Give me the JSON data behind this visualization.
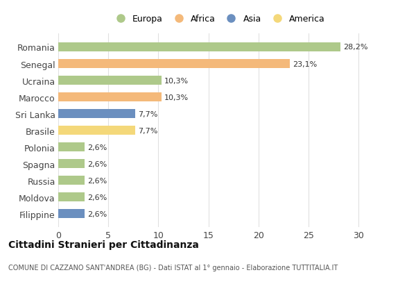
{
  "countries": [
    "Romania",
    "Senegal",
    "Ucraina",
    "Marocco",
    "Sri Lanka",
    "Brasile",
    "Polonia",
    "Spagna",
    "Russia",
    "Moldova",
    "Filippine"
  ],
  "values": [
    28.2,
    23.1,
    10.3,
    10.3,
    7.7,
    7.7,
    2.6,
    2.6,
    2.6,
    2.6,
    2.6
  ],
  "labels": [
    "28,2%",
    "23,1%",
    "10,3%",
    "10,3%",
    "7,7%",
    "7,7%",
    "2,6%",
    "2,6%",
    "2,6%",
    "2,6%",
    "2,6%"
  ],
  "colors": [
    "#aec98a",
    "#f4b97a",
    "#aec98a",
    "#f4b97a",
    "#6b8fbf",
    "#f4d87a",
    "#aec98a",
    "#aec98a",
    "#aec98a",
    "#aec98a",
    "#6b8fbf"
  ],
  "legend_labels": [
    "Europa",
    "Africa",
    "Asia",
    "America"
  ],
  "legend_colors": [
    "#aec98a",
    "#f4b97a",
    "#6b8fbf",
    "#f4d87a"
  ],
  "xlim": [
    0,
    32
  ],
  "xticks": [
    0,
    5,
    10,
    15,
    20,
    25,
    30
  ],
  "title": "Cittadini Stranieri per Cittadinanza",
  "subtitle": "COMUNE DI CAZZANO SANT'ANDREA (BG) - Dati ISTAT al 1° gennaio - Elaborazione TUTTITALIA.IT",
  "bg_color": "#ffffff",
  "grid_color": "#e0e0e0",
  "bar_height": 0.55,
  "label_fontsize": 8,
  "ytick_fontsize": 9,
  "xtick_fontsize": 9
}
